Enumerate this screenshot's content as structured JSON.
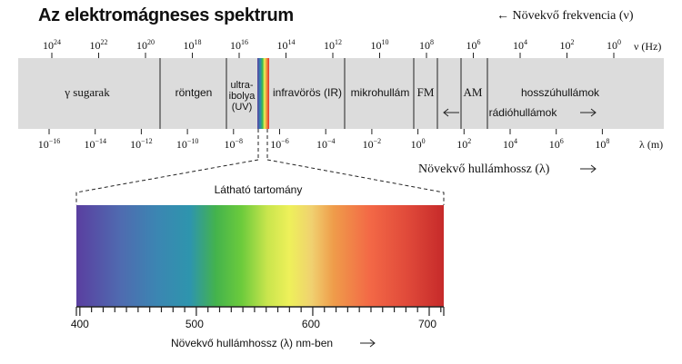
{
  "title": "Az elektromágneses spektrum",
  "frequency_direction": "← Növekvő frekvencia (ν)",
  "frequency_axis": {
    "unit": "ν (Hz)",
    "exponents": [
      "24",
      "22",
      "20",
      "18",
      "16",
      "14",
      "12",
      "10",
      "8",
      "6",
      "4",
      "2",
      "0"
    ]
  },
  "wavelength_axis": {
    "unit": "λ (m)",
    "exponents": [
      "−16",
      "−14",
      "−12",
      "−10",
      "−8",
      "−6",
      "−4",
      "−2",
      "0",
      "2",
      "4",
      "6",
      "8"
    ]
  },
  "regions": {
    "gamma": "γ sugarak",
    "xray": "röntgen",
    "uv_line1": "ultra-",
    "uv_line2": "ibolya",
    "uv_line3": "(UV)",
    "ir": "infravörös (IR)",
    "microwave": "mikrohullám",
    "fm": "FM",
    "am": "AM",
    "longwave": "hosszúhullámok",
    "radio": "rádióhullámok"
  },
  "wavelength_direction": "Növekvő hullámhossz (λ)",
  "visible": {
    "title": "Látható tartomány",
    "ticks": [
      "400",
      "500",
      "600",
      "700"
    ],
    "axis_label": "Növekvő hullámhossz (λ) nm-ben"
  },
  "colors": {
    "band": "#dcdcdc",
    "spectrum_violet": "#5a3fa0",
    "spectrum_blue": "#2e8ab0",
    "spectrum_green": "#3fbd4a",
    "spectrum_yellow": "#eef05a",
    "spectrum_red": "#c62a2a"
  }
}
